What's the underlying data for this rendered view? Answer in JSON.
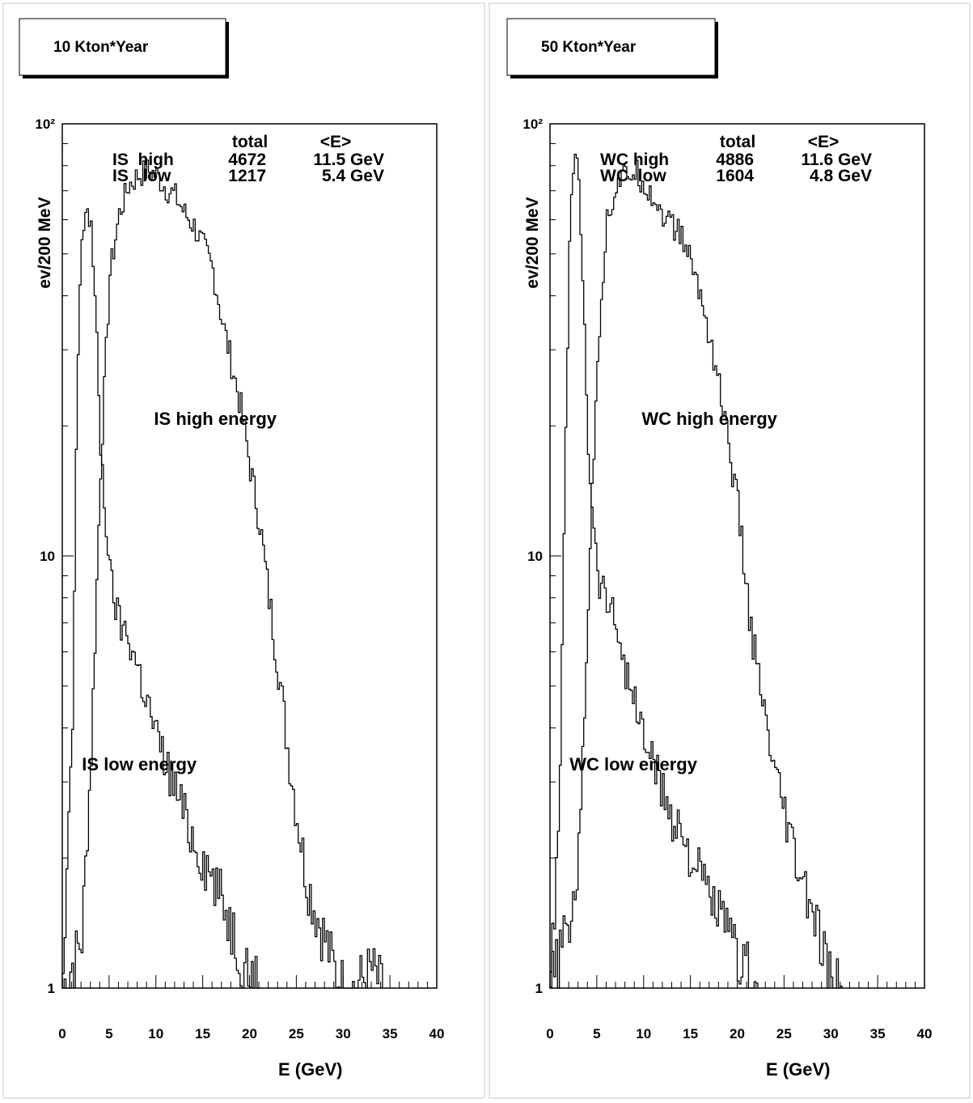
{
  "chart_data": [
    {
      "type": "histogram",
      "title": "10 Kton*Year",
      "xlabel": "E (GeV)",
      "ylabel": "ev/200 MeV",
      "xlim": [
        0,
        40
      ],
      "ylim": [
        1,
        100
      ],
      "yscale": "log",
      "x_ticks": [
        "0",
        "5",
        "10",
        "15",
        "20",
        "25",
        "30",
        "35",
        "40"
      ],
      "y_ticks": [
        "1",
        "10",
        "10²"
      ],
      "stats": {
        "header": [
          "total",
          "<E>"
        ],
        "rows": [
          {
            "label": "IS  high",
            "total": "4672",
            "mean": "11.5 GeV"
          },
          {
            "label": "IS   low",
            "total": "1217",
            "mean": "5.4 GeV"
          }
        ]
      },
      "annotations": [
        "IS high energy",
        "IS low energy"
      ],
      "series": [
        {
          "name": "IS high energy",
          "x": [
            0,
            2,
            3,
            4,
            5,
            6,
            7,
            8,
            9,
            10,
            11,
            12,
            13,
            14,
            15,
            16,
            17,
            18,
            19,
            20,
            21,
            22,
            23,
            24,
            25,
            26,
            27,
            28,
            29,
            30,
            31,
            33,
            34
          ],
          "y": [
            1,
            1.3,
            3.5,
            16,
            45,
            62,
            72,
            76,
            78,
            76,
            71,
            68,
            62,
            58,
            52,
            46,
            35,
            28,
            22,
            16,
            12,
            8,
            5.5,
            3.6,
            2.5,
            1.8,
            1.5,
            1.3,
            1.1,
            1,
            1,
            1.1,
            1
          ]
        },
        {
          "name": "IS low energy",
          "x": [
            0,
            1,
            1.5,
            2,
            2.5,
            3,
            3.5,
            4,
            5,
            6,
            7,
            8,
            9,
            10,
            11,
            12,
            13,
            14,
            15,
            16,
            17,
            18,
            19,
            20,
            21
          ],
          "y": [
            1,
            4,
            25,
            55,
            65,
            58,
            35,
            18,
            9,
            7,
            6.5,
            5.5,
            4.6,
            3.8,
            3.3,
            2.9,
            2.5,
            2.2,
            2.0,
            1.8,
            1.6,
            1.4,
            1.2,
            1.1,
            1
          ]
        }
      ]
    },
    {
      "type": "histogram",
      "title": "50 Kton*Year",
      "xlabel": "E (GeV)",
      "ylabel": "ev/200 MeV",
      "xlim": [
        0,
        40
      ],
      "ylim": [
        1,
        100
      ],
      "yscale": "log",
      "x_ticks": [
        "0",
        "5",
        "10",
        "15",
        "20",
        "25",
        "30",
        "35",
        "40"
      ],
      "y_ticks": [
        "1",
        "10",
        "10²"
      ],
      "stats": {
        "header": [
          "total",
          "<E>"
        ],
        "rows": [
          {
            "label": "WC high",
            "total": "4886",
            "mean": "11.6 GeV"
          },
          {
            "label": "WC  low",
            "total": "1604",
            "mean": "4.8 GeV"
          }
        ]
      },
      "annotations": [
        "WC high energy",
        "WC low energy"
      ],
      "series": [
        {
          "name": "WC high energy",
          "x": [
            0,
            1,
            2,
            3,
            4,
            5,
            6,
            7,
            8,
            9,
            10,
            11,
            12,
            13,
            14,
            15,
            16,
            17,
            18,
            19,
            20,
            21,
            22,
            23,
            24,
            25,
            26,
            27,
            28,
            29,
            30,
            31
          ],
          "y": [
            1,
            1.2,
            1.4,
            2,
            8,
            30,
            60,
            72,
            76,
            78,
            73,
            67,
            62,
            58,
            55,
            48,
            40,
            32,
            25,
            18,
            13,
            8,
            5.5,
            4,
            3,
            2.5,
            2,
            1.7,
            1.5,
            1.2,
            1,
            1
          ]
        },
        {
          "name": "WC low energy",
          "x": [
            0,
            1,
            1.5,
            2,
            2.5,
            3,
            3.5,
            4,
            5,
            6,
            7,
            8,
            9,
            10,
            11,
            12,
            13,
            14,
            15,
            16,
            17,
            18,
            19,
            20,
            21,
            22
          ],
          "y": [
            1,
            3,
            15,
            55,
            85,
            75,
            40,
            18,
            9,
            8,
            7,
            5.5,
            4.5,
            3.8,
            3.3,
            2.8,
            2.5,
            2.3,
            2.0,
            1.8,
            1.6,
            1.5,
            1.3,
            1.2,
            1.1,
            1
          ]
        }
      ]
    }
  ]
}
